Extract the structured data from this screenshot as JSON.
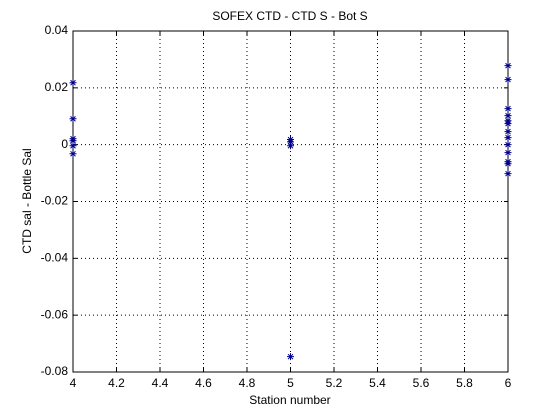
{
  "chart_data": {
    "type": "scatter",
    "title": "SOFEX CTD - CTD S - Bot S",
    "x_label": "Station number",
    "y_label": "CTD sal - Bottle Sal",
    "series": [
      {
        "color": "#00008b",
        "x": [
          4,
          4,
          4,
          4,
          4,
          4,
          5,
          5,
          5,
          5,
          6,
          6,
          6,
          6,
          6,
          6,
          6,
          6,
          6,
          6,
          6,
          6,
          6
        ],
        "values": [
          0.0218,
          0.0091,
          0.0021,
          0.0014,
          -0.0004,
          -0.0032,
          0.0018,
          0.001,
          -0.0004,
          -0.0746,
          0.0278,
          0.0229,
          0.0127,
          0.0102,
          0.0084,
          0.0074,
          0.0046,
          0.0025,
          0,
          -0.0028,
          -0.006,
          -0.0067,
          -0.0102
        ]
      }
    ],
    "xlim": [
      4,
      6
    ],
    "xticks": [
      4,
      4.2,
      4.4,
      4.6,
      4.8,
      5,
      5.2,
      5.4,
      5.6,
      5.8,
      6
    ],
    "ylim": [
      -0.08,
      0.04
    ],
    "yticks": [
      -0.08,
      -0.06,
      -0.04,
      -0.02,
      0,
      0.02,
      0.04
    ],
    "grid": true
  }
}
